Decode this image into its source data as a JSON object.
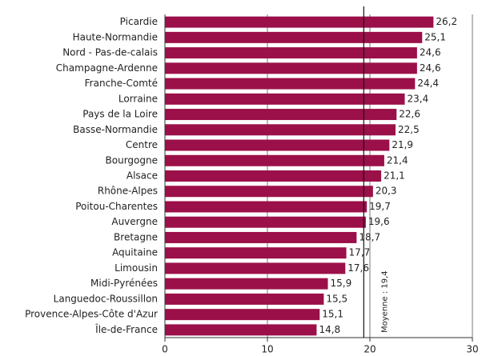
{
  "chart_data": {
    "type": "barh",
    "categories": [
      "Picardie",
      "Haute-Normandie",
      "Nord - Pas-de-calais",
      "Champagne-Ardenne",
      "Franche-Comté",
      "Lorraine",
      "Pays de la Loire",
      "Basse-Normandie",
      "Centre",
      "Bourgogne",
      "Alsace",
      "Rhône-Alpes",
      "Poitou-Charentes",
      "Auvergne",
      "Bretagne",
      "Aquitaine",
      "Limousin",
      "Midi-Pyrénées",
      "Languedoc-Roussillon",
      "Provence-Alpes-Côte d'Azur",
      "Île-de-France"
    ],
    "values": [
      26.2,
      25.1,
      24.6,
      24.6,
      24.4,
      23.4,
      22.6,
      22.5,
      21.9,
      21.4,
      21.1,
      20.3,
      19.7,
      19.6,
      18.7,
      17.7,
      17.6,
      15.9,
      15.5,
      15.1,
      14.8
    ],
    "value_labels": [
      "26,2",
      "25,1",
      "24,6",
      "24,6",
      "24,4",
      "23,4",
      "22,6",
      "22,5",
      "21,9",
      "21,4",
      "21,1",
      "20,3",
      "19,7",
      "19,6",
      "18,7",
      "17,7",
      "17,6",
      "15,9",
      "15,5",
      "15,1",
      "14,8"
    ],
    "color": "#9b1048",
    "xlim": [
      0,
      30
    ],
    "xticks": [
      0,
      10,
      20,
      30
    ],
    "grid": true,
    "mean": {
      "value": 19.4,
      "label": "Moyenne : 19,4"
    }
  }
}
